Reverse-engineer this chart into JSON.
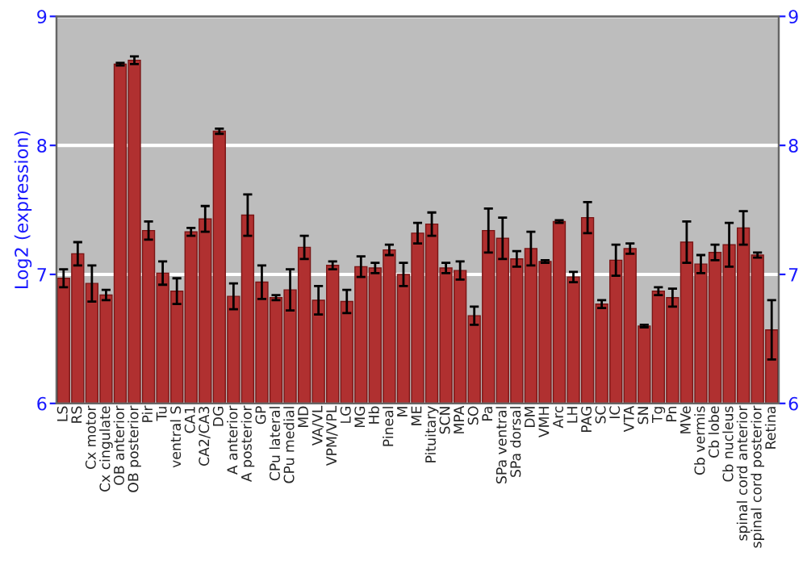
{
  "chart_data": {
    "type": "bar",
    "ylabel": "Log2 (expression)",
    "categories": [
      "LS",
      "RS",
      "Cx motor",
      "Cx cingulate",
      "OB anterior",
      "OB posterior",
      "Pir",
      "Tu",
      "ventral S",
      "CA1",
      "CA2/CA3",
      "DG",
      "A anterior",
      "A posterior",
      "GP",
      "CPu lateral",
      "CPu medial",
      "MD",
      "VA/VL",
      "VPM/VPL",
      "LG",
      "MG",
      "Hb",
      "Pineal",
      "M",
      "ME",
      "Pituitary",
      "SCN",
      "MPA",
      "SO",
      "Pa",
      "SPa ventral",
      "SPa dorsal",
      "DM",
      "VMH",
      "Arc",
      "LH",
      "PAG",
      "SC",
      "IC",
      "VTA",
      "SN",
      "Tg",
      "Pn",
      "MVe",
      "Cb vermis",
      "Cb lobe",
      "Cb nucleus",
      "spinal cord anterior",
      "spinal cord posterior",
      "Retina"
    ],
    "values": [
      6.97,
      7.16,
      6.93,
      6.84,
      8.63,
      8.66,
      7.34,
      7.01,
      6.87,
      7.33,
      7.43,
      8.11,
      6.83,
      7.46,
      6.94,
      6.82,
      6.88,
      7.21,
      6.8,
      7.07,
      6.79,
      7.06,
      7.05,
      7.19,
      7.0,
      7.32,
      7.39,
      7.05,
      7.03,
      6.68,
      7.34,
      7.28,
      7.12,
      7.2,
      7.1,
      7.41,
      6.98,
      7.44,
      6.77,
      7.11,
      7.2,
      6.6,
      6.87,
      6.82,
      7.25,
      7.08,
      7.17,
      7.23,
      7.36,
      7.15,
      6.57
    ],
    "errors": [
      0.07,
      0.09,
      0.14,
      0.04,
      0.01,
      0.03,
      0.07,
      0.09,
      0.1,
      0.03,
      0.1,
      0.02,
      0.1,
      0.16,
      0.13,
      0.02,
      0.16,
      0.09,
      0.11,
      0.03,
      0.09,
      0.08,
      0.04,
      0.04,
      0.09,
      0.08,
      0.09,
      0.04,
      0.07,
      0.07,
      0.17,
      0.16,
      0.06,
      0.13,
      0.01,
      0.01,
      0.04,
      0.12,
      0.03,
      0.12,
      0.04,
      0.01,
      0.03,
      0.07,
      0.16,
      0.07,
      0.06,
      0.17,
      0.13,
      0.02,
      0.23
    ],
    "color": "#b03030",
    "ylim": [
      6,
      9
    ],
    "yticks": [
      6,
      7,
      8,
      9
    ],
    "y2lim": [
      6,
      9
    ],
    "y2ticks": [
      6,
      7,
      8,
      9
    ],
    "grid": "y"
  }
}
